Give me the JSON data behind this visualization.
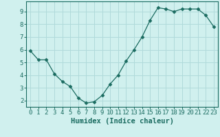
{
  "x": [
    0,
    1,
    2,
    3,
    4,
    5,
    6,
    7,
    8,
    9,
    10,
    11,
    12,
    13,
    14,
    15,
    16,
    17,
    18,
    19,
    20,
    21,
    22,
    23
  ],
  "y": [
    5.9,
    5.2,
    5.2,
    4.1,
    3.5,
    3.1,
    2.2,
    1.8,
    1.9,
    2.4,
    3.3,
    4.0,
    5.1,
    6.0,
    7.0,
    8.3,
    9.3,
    9.2,
    9.0,
    9.2,
    9.2,
    9.2,
    8.7,
    7.8
  ],
  "line_color": "#1a6b60",
  "marker": "D",
  "marker_size": 2.5,
  "bg_color": "#d0f0ee",
  "grid_color": "#b0dada",
  "xlabel": "Humidex (Indice chaleur)",
  "ylim": [
    1.5,
    9.8
  ],
  "xlim": [
    -0.5,
    23.5
  ],
  "yticks": [
    2,
    3,
    4,
    5,
    6,
    7,
    8,
    9
  ],
  "xticks": [
    0,
    1,
    2,
    3,
    4,
    5,
    6,
    7,
    8,
    9,
    10,
    11,
    12,
    13,
    14,
    15,
    16,
    17,
    18,
    19,
    20,
    21,
    22,
    23
  ],
  "tick_label_fontsize": 6.5,
  "xlabel_fontsize": 7.5
}
